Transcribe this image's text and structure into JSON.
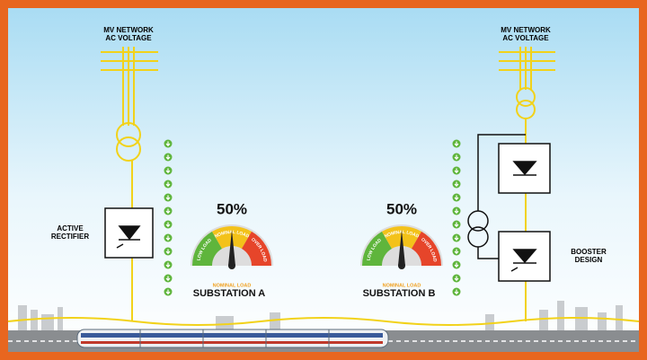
{
  "left_feed": {
    "network_lines": [
      "MV NETWORK",
      "AC VOLTAGE"
    ],
    "converter_lines": [
      "ACTIVE",
      "RECTIFIER"
    ]
  },
  "right_feed": {
    "network_lines": [
      "MV NETWORK",
      "AC VOLTAGE"
    ],
    "converter_lines": [
      "BOOSTER",
      "DESIGN"
    ]
  },
  "substations": [
    {
      "name": "SUBSTATION A",
      "load": {
        "value": 50,
        "label": "50%"
      },
      "status": "NOMINAL LOAD",
      "zones": [
        "LOW LOAD",
        "NOMINAL LOAD",
        "OVER LOAD"
      ]
    },
    {
      "name": "SUBSTATION B",
      "load": {
        "value": 50,
        "label": "50%"
      },
      "status": "NOMINAL LOAD",
      "zones": [
        "LOW LOAD",
        "NOMINAL LOAD",
        "OVER LOAD"
      ]
    }
  ]
}
